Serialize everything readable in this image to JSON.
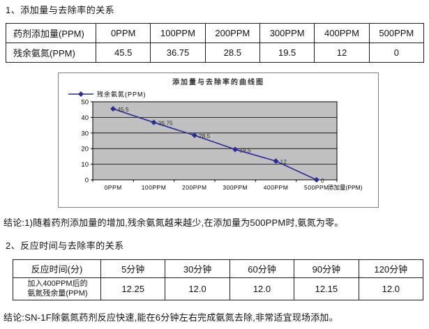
{
  "section1": {
    "title": "1、添加量与去除率的关系"
  },
  "table1": {
    "rows": [
      [
        "药剂添加量(PPM)",
        "0PPM",
        "100PPM",
        "200PPM",
        "300PPM",
        "400PPM",
        "500PPM"
      ],
      [
        "残余氨氮(PPM)",
        "45.5",
        "36.75",
        "28.5",
        "19.5",
        "12",
        "0"
      ]
    ]
  },
  "chart_data": {
    "type": "line",
    "title": "添加量与去除率的曲线图",
    "legend": "残余氨氮(PPM)",
    "categories": [
      "0PPM",
      "100PPM",
      "200PPM",
      "300PPM",
      "400PPM",
      "500PPM"
    ],
    "values": [
      45.5,
      36.75,
      28.5,
      19.5,
      12,
      0
    ],
    "point_labels": [
      "45.5",
      "36.75",
      "28.5",
      "19.5",
      "12",
      "0"
    ],
    "xlabel": "添加量(PPM)",
    "ylabel": "",
    "ylim": [
      0,
      50
    ],
    "yticks": [
      0,
      10,
      20,
      30,
      40,
      50
    ],
    "grid": true,
    "legend_position": "top-left",
    "line_color": "#2a2a99",
    "plot_bg": "#c0c0c0",
    "grid_color": "#000000",
    "label_color": "#333333"
  },
  "conclusion1": "结论:1)随着药剂添加量的增加,残余氨氮越来越少,在添加量为500PPM时,氨氮为零。",
  "section2": {
    "title": "2、反应时间与去除率的关系"
  },
  "table2": {
    "rows": [
      [
        "反应时间(分)",
        "5分钟",
        "30分钟",
        "60分钟",
        "90分钟",
        "120分钟"
      ],
      [
        "加入400PPM后的\n氨氮残余量(PPM)",
        "12.25",
        "12.0",
        "12.0",
        "12.15",
        "12.0"
      ]
    ]
  },
  "conclusion2": "结论:SN-1F除氨氮药剂反应快速,能在6分钟左右完成氨氮去除,非常适宜现场添加。"
}
